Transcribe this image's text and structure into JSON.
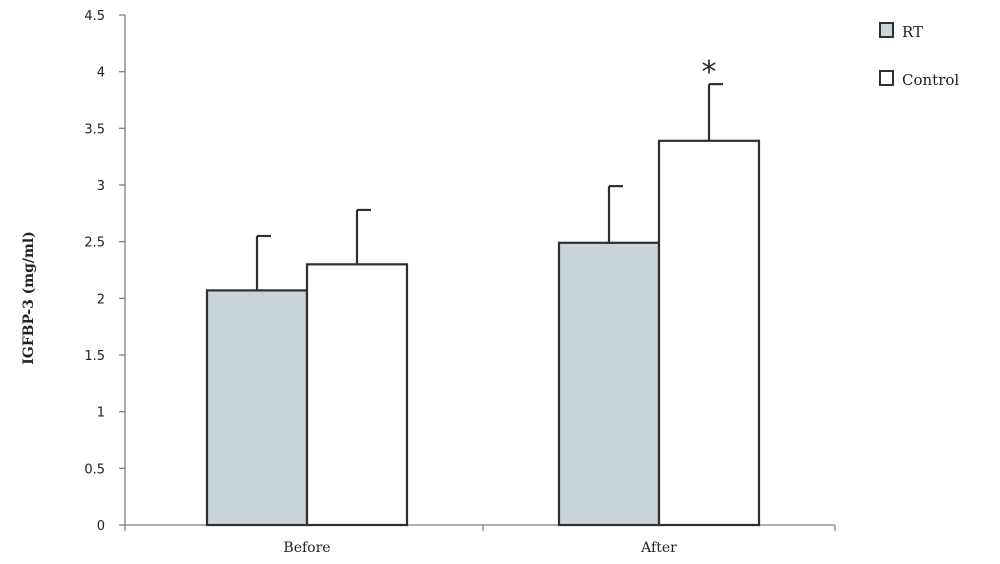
{
  "chart_data": {
    "type": "bar",
    "categories": [
      "Before",
      "After"
    ],
    "series": [
      {
        "name": "RT",
        "values": [
          2.07,
          2.49
        ],
        "errors": [
          0.48,
          0.5
        ]
      },
      {
        "name": "Control",
        "values": [
          2.3,
          3.39
        ],
        "errors": [
          0.48,
          0.5
        ]
      }
    ],
    "ylabel": "IGFBP-3 (mg/ml)",
    "xlabel": "",
    "ylim": [
      0,
      4.5
    ],
    "yticks": [
      "0",
      "0.5",
      "1",
      "1.5",
      "2",
      "2.5",
      "3",
      "3.5",
      "4",
      "4.5"
    ],
    "grid": false,
    "legend_position": "top-right",
    "annotations": [
      {
        "text": "*",
        "category": "After",
        "series": "Control"
      }
    ],
    "colors": {
      "RT": "#c8d4da",
      "Control": "#ffffff",
      "stroke": "#2f2f2f",
      "axis": "#7f7f7f"
    }
  }
}
